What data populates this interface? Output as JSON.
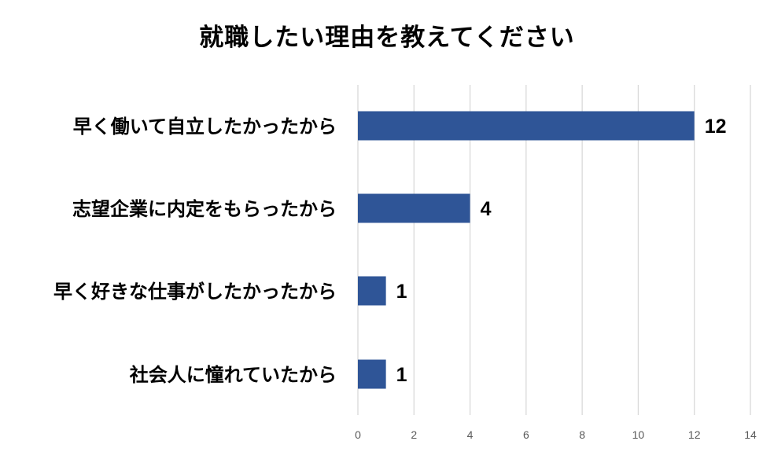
{
  "chart_data": {
    "type": "bar",
    "orientation": "horizontal",
    "title": "就職したい理由を教えてください",
    "categories": [
      "早く働いて自立したかったから",
      "志望企業に内定をもらったから",
      "早く好きな仕事がしたかったから",
      "社会人に憧れていたから"
    ],
    "values": [
      12,
      4,
      1,
      1
    ],
    "data_labels": [
      "12",
      "4",
      "1",
      "1"
    ],
    "xlim": [
      0,
      14
    ],
    "x_ticks": [
      0,
      2,
      4,
      6,
      8,
      10,
      12,
      14
    ],
    "x_tick_labels": [
      "0",
      "2",
      "4",
      "6",
      "8",
      "10",
      "12",
      "14"
    ],
    "xlabel": "",
    "ylabel": "",
    "grid": "vertical",
    "legend": "none",
    "bar_color": "#2f5597"
  }
}
